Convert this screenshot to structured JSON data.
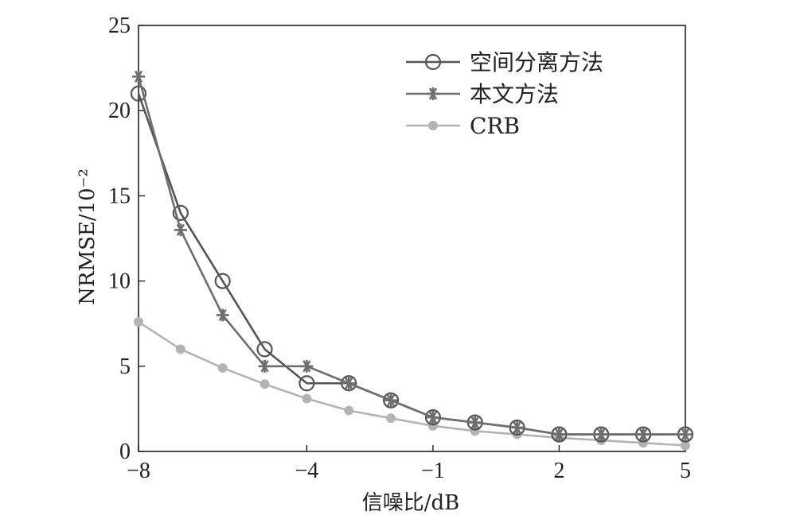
{
  "chart_data": {
    "type": "line",
    "xlabel": "信噪比/dB",
    "ylabel": "NRMSE/10⁻²",
    "xlim": [
      -8,
      5
    ],
    "ylim": [
      0,
      25
    ],
    "xticks": [
      -8,
      -4,
      -1,
      2,
      5
    ],
    "xtick_labels": [
      "−8",
      "−4",
      "−1",
      "2",
      "5"
    ],
    "yticks": [
      0,
      5,
      10,
      15,
      20,
      25
    ],
    "ytick_labels": [
      "0",
      "5",
      "10",
      "15",
      "20",
      "25"
    ],
    "legend_position": "top-right",
    "grid": false,
    "x": [
      -8,
      -7,
      -6,
      -5,
      -4,
      -3,
      -2,
      -1,
      0,
      1,
      2,
      3,
      4,
      5
    ],
    "series": [
      {
        "name": "空间分离方法",
        "marker": "circle",
        "color": "#555555",
        "values": [
          21,
          14,
          10,
          6,
          4,
          4,
          3,
          2,
          1.7,
          1.4,
          1,
          1,
          1,
          1
        ]
      },
      {
        "name": "本文方法",
        "marker": "asterisk",
        "color": "#6e6e6e",
        "values": [
          22,
          13,
          8,
          5,
          5,
          4,
          3,
          2,
          1.7,
          1.4,
          1,
          1,
          1,
          1
        ]
      },
      {
        "name": "CRB",
        "marker": "filled-circle",
        "color": "#b3b3b3",
        "values": [
          7.6,
          6.0,
          4.9,
          3.95,
          3.1,
          2.4,
          1.95,
          1.5,
          1.2,
          1.0,
          0.8,
          0.65,
          0.5,
          0.35
        ]
      }
    ]
  }
}
